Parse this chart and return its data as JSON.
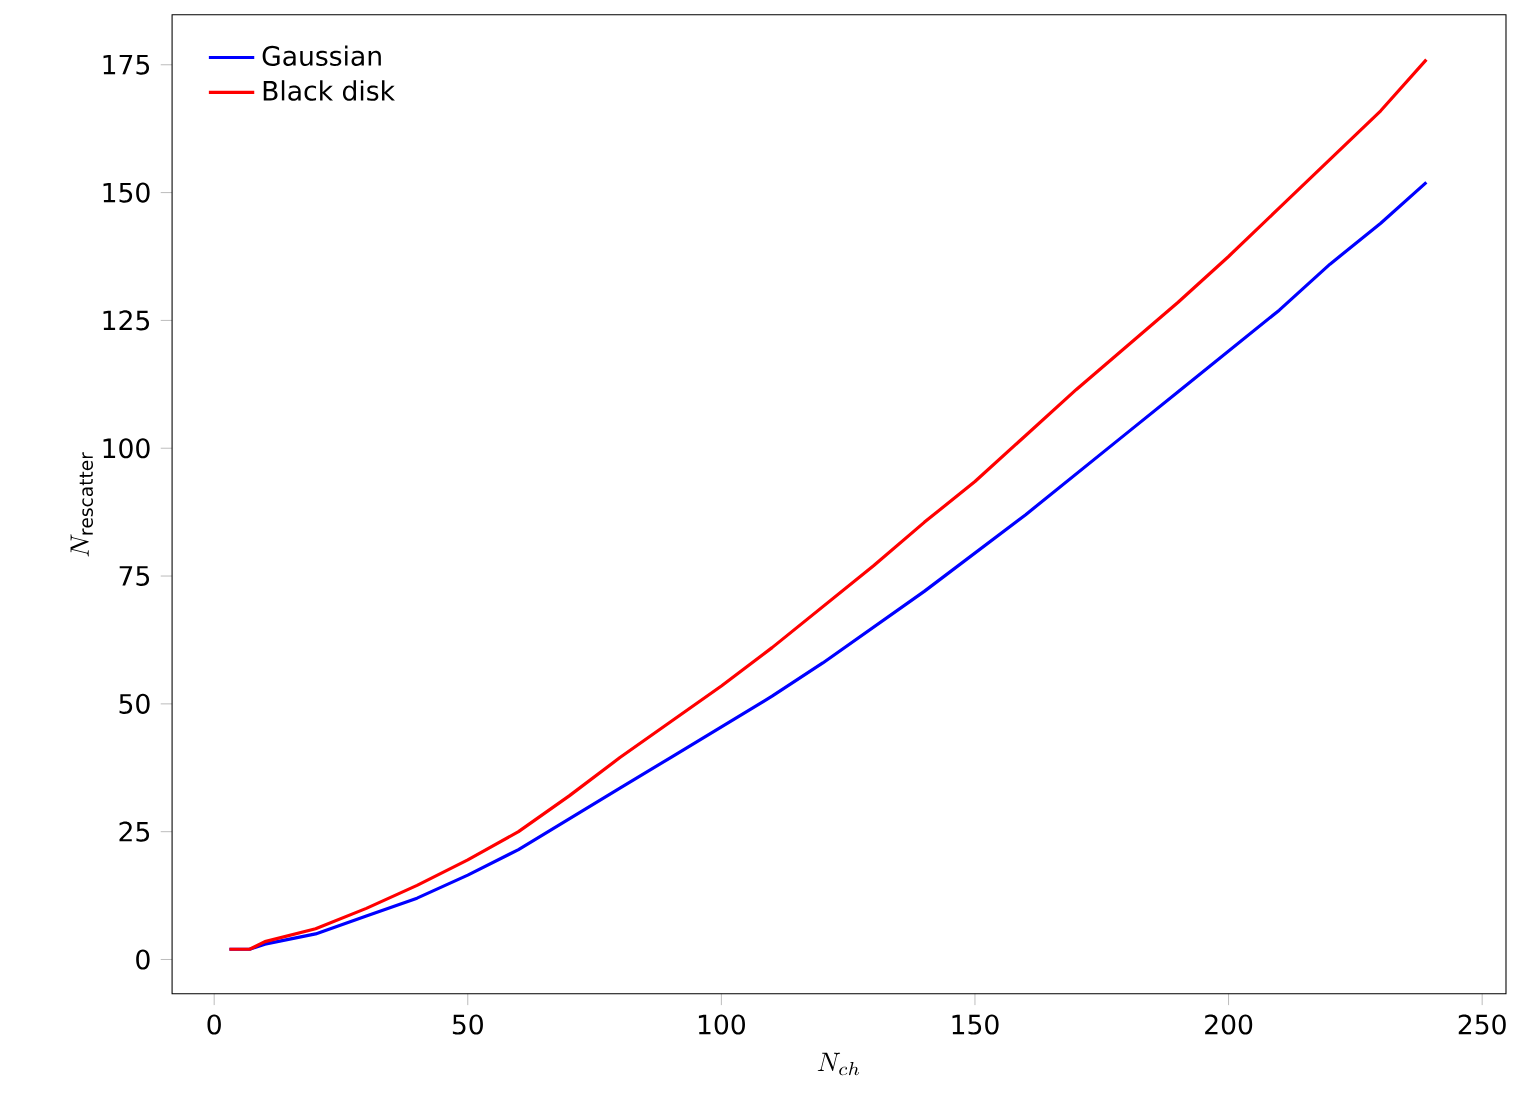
{
  "chart_data": {
    "type": "line",
    "xlabel": "N_{ch}",
    "ylabel": "N_{\\mathrm{rescatter}}",
    "xlim": [
      -8.3,
      254.7
    ],
    "ylim": [
      -6.7,
      184.8
    ],
    "xticks": [
      0,
      50,
      100,
      150,
      200,
      250
    ],
    "yticks": [
      0,
      25,
      50,
      75,
      100,
      125,
      150,
      175
    ],
    "legend": "top left",
    "grid": false,
    "series": [
      {
        "name": "Gaussian",
        "color": "#0000ff",
        "x": [
          3,
          7,
          10,
          20,
          30,
          40,
          50,
          60,
          70,
          80,
          90,
          100,
          110,
          120,
          130,
          140,
          150,
          160,
          170,
          180,
          190,
          200,
          210,
          220,
          230,
          239
        ],
        "values": [
          2,
          2,
          3,
          5,
          8.5,
          12,
          16.5,
          21.5,
          27.5,
          33.5,
          39.5,
          45.5,
          51.5,
          58,
          65,
          72,
          79.5,
          87,
          95,
          103,
          111,
          119,
          127,
          136,
          144,
          152
        ]
      },
      {
        "name": "Black disk",
        "color": "#ff0000",
        "x": [
          3,
          7,
          10,
          20,
          30,
          40,
          50,
          60,
          70,
          80,
          90,
          100,
          110,
          120,
          130,
          140,
          150,
          160,
          170,
          180,
          190,
          200,
          210,
          220,
          230,
          239
        ],
        "values": [
          2,
          2,
          3.5,
          6,
          10,
          14.5,
          19.5,
          25,
          32,
          39.5,
          46.5,
          53.5,
          61,
          69,
          77,
          85.5,
          93.5,
          102.5,
          111.5,
          120,
          128.5,
          137.5,
          147,
          156.5,
          166,
          176
        ]
      }
    ]
  }
}
